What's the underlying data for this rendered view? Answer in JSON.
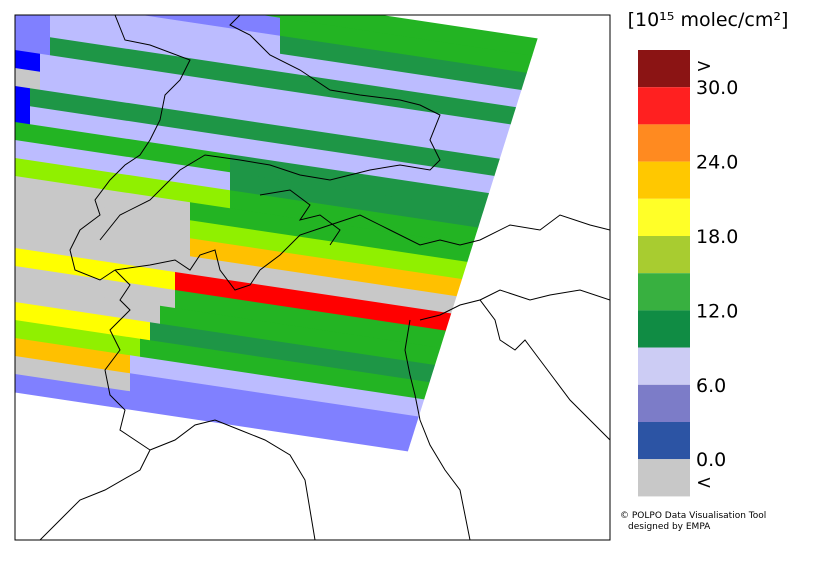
{
  "legend": {
    "title": "[10¹⁵ molec/cm²]",
    "labels": [
      ">",
      "30.0",
      "24.0",
      "18.0",
      "12.0",
      "6.0",
      "0.0",
      "<"
    ],
    "colors": [
      "#8b1414",
      "#ff2020",
      "#ff8a20",
      "#ffc800",
      "#ffff28",
      "#a8cc30",
      "#38b040",
      "#108c44",
      "#ccccf4",
      "#7c7cc8",
      "#2c54a4",
      "#c8c8c8"
    ]
  },
  "credits": [
    "© POLPO Data Visualisation Tool",
    "designed by EMPA"
  ]
}
